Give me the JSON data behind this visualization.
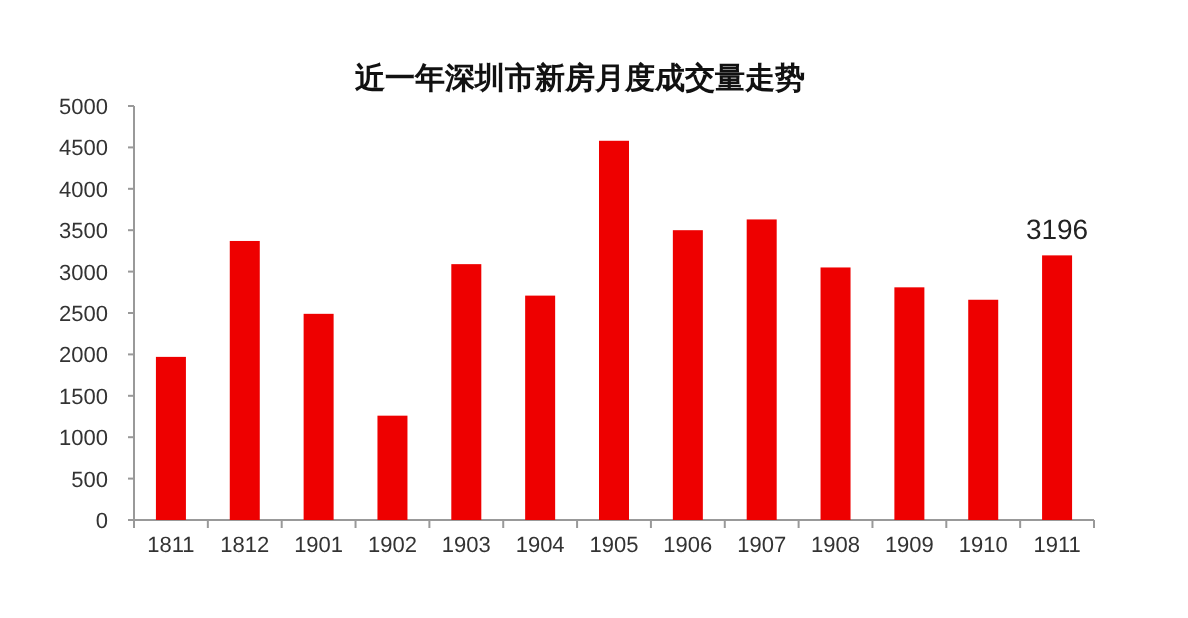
{
  "chart_data": {
    "type": "bar",
    "title": "近一年深圳市新房月度成交量走势",
    "categories": [
      "1811",
      "1812",
      "1901",
      "1902",
      "1903",
      "1904",
      "1905",
      "1906",
      "1907",
      "1908",
      "1909",
      "1910",
      "1911"
    ],
    "values": [
      1970,
      3370,
      2490,
      1260,
      3090,
      2710,
      4580,
      3500,
      3630,
      3050,
      2810,
      2660,
      3196
    ],
    "value_labels": [
      null,
      null,
      null,
      null,
      null,
      null,
      null,
      null,
      null,
      null,
      null,
      null,
      "3196"
    ],
    "color": "#ee0000",
    "ylim": [
      0,
      5000
    ],
    "yticks": [
      0,
      500,
      1000,
      1500,
      2000,
      2500,
      3000,
      3500,
      4000,
      4500,
      5000
    ]
  }
}
